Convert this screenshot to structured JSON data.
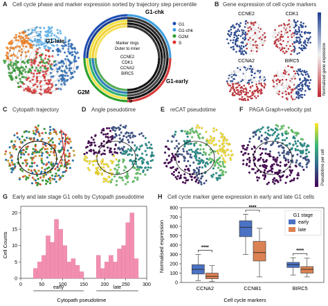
{
  "panel_a": {
    "letter": "A",
    "title": "Cell cycle phase and marker expression sorted by trajectory step percentile",
    "phase_labels": [
      "G1-chk",
      "G1-late",
      "G1-early",
      "G2M",
      "S"
    ],
    "legend": [
      {
        "label": "G1",
        "color": "#1f4fb5"
      },
      {
        "label": "G1-chk",
        "color": "#3fa0e0"
      },
      {
        "label": "G2M",
        "color": "#2ca02c"
      },
      {
        "label": "S",
        "color": "#e03030"
      }
    ],
    "ring_note": [
      "Marker rings",
      "Outer to inner"
    ],
    "ring_markers": [
      "CCNE2",
      "CDK1",
      "CCNA2",
      "BIRC5"
    ],
    "scatter_colors": {
      "G1": "#2f6db5",
      "G1-chk": "#5aaee8",
      "S": "#d83a3a",
      "G2M": "#3a9a3a",
      "G2M-orange": "#ef7f22"
    }
  },
  "panel_b": {
    "letter": "B",
    "title": "Gene expression of cell cycle markers",
    "genes": [
      "CCNE2",
      "CDK1",
      "CCNA2",
      "BIRC5"
    ],
    "colorbar_label": "Normalized gene expression",
    "colors": {
      "high": "#1a3d8f",
      "mid": "#f2f2f2",
      "low": "#c0232b"
    }
  },
  "panel_c": {
    "letter": "C",
    "title": "Cytopath trajectory"
  },
  "panel_d": {
    "letter": "D",
    "title": "Angle pseudotime"
  },
  "panel_e": {
    "letter": "E",
    "title": "reCAT pseudotime"
  },
  "panel_f": {
    "letter": "F",
    "title": "PAGA Graph+velocity pst",
    "colorbar_label": "Pseudotime per cell"
  },
  "panel_g": {
    "letter": "G",
    "title": "Early and late stage G1 cells by Cytopath pseudotime",
    "bar_color": "#f28fb0",
    "chart_data": {
      "type": "bar",
      "title": "Early and late stage G1 cells by Cytopath pseudotime",
      "xlabel": "Cytopath pseudotime",
      "ylabel": "Cell Counts",
      "xlim": [
        0,
        300
      ],
      "ylim": [
        0,
        22
      ],
      "xticks": [
        0,
        50,
        100,
        150,
        200,
        250,
        300
      ],
      "yticks": [
        0,
        5,
        10,
        15,
        20
      ],
      "group_labels": [
        "early",
        "late"
      ],
      "bins": [
        {
          "x0": 30,
          "x1": 40,
          "value": 3
        },
        {
          "x0": 40,
          "x1": 50,
          "value": 5
        },
        {
          "x0": 50,
          "x1": 60,
          "value": 7
        },
        {
          "x0": 60,
          "x1": 70,
          "value": 13
        },
        {
          "x0": 70,
          "x1": 80,
          "value": 11
        },
        {
          "x0": 80,
          "x1": 90,
          "value": 18
        },
        {
          "x0": 90,
          "x1": 100,
          "value": 15
        },
        {
          "x0": 100,
          "x1": 110,
          "value": 10
        },
        {
          "x0": 110,
          "x1": 120,
          "value": 5
        },
        {
          "x0": 120,
          "x1": 130,
          "value": 6
        },
        {
          "x0": 130,
          "x1": 140,
          "value": 4
        },
        {
          "x0": 140,
          "x1": 150,
          "value": 2
        },
        {
          "x0": 180,
          "x1": 190,
          "value": 7
        },
        {
          "x0": 190,
          "x1": 200,
          "value": 3
        },
        {
          "x0": 200,
          "x1": 210,
          "value": 5
        },
        {
          "x0": 210,
          "x1": 220,
          "value": 7
        },
        {
          "x0": 220,
          "x1": 230,
          "value": 5
        },
        {
          "x0": 230,
          "x1": 240,
          "value": 9
        },
        {
          "x0": 240,
          "x1": 250,
          "value": 10
        },
        {
          "x0": 250,
          "x1": 260,
          "value": 17
        },
        {
          "x0": 260,
          "x1": 270,
          "value": 20
        },
        {
          "x0": 270,
          "x1": 280,
          "value": 6
        }
      ]
    }
  },
  "panel_h": {
    "letter": "H",
    "title": "Cell cycle marker gene expression in early and late G1 cells",
    "chart_data": {
      "type": "box",
      "title": "Cell cycle marker gene expression in early and late G1 cells",
      "xlabel": "Cell cycle markers",
      "ylabel": "Normalised expression",
      "ylim": [
        0,
        800
      ],
      "yticks": [
        0,
        100,
        200,
        300,
        400,
        500,
        600,
        700,
        800
      ],
      "categories": [
        "CCNA2",
        "CCNB1",
        "BIRC5"
      ],
      "legend_title": "G1 stage",
      "significance": [
        "****",
        "****",
        "****"
      ],
      "series": [
        {
          "name": "early",
          "color": "#4b72c4",
          "boxes": [
            {
              "whisker_low": 20,
              "q1": 90,
              "median": 140,
              "q3": 190,
              "whisker_high": 300
            },
            {
              "whisker_low": 300,
              "q1": 490,
              "median": 590,
              "q3": 660,
              "whisker_high": 730
            },
            {
              "whisker_low": 80,
              "q1": 160,
              "median": 190,
              "q3": 215,
              "whisker_high": 265
            }
          ]
        },
        {
          "name": "late",
          "color": "#dc8252",
          "boxes": [
            {
              "whisker_low": 10,
              "q1": 40,
              "median": 65,
              "q3": 100,
              "whisker_high": 180
            },
            {
              "whisker_low": 60,
              "q1": 230,
              "median": 320,
              "q3": 440,
              "whisker_high": 580
            },
            {
              "whisker_low": 60,
              "q1": 100,
              "median": 140,
              "q3": 170,
              "whisker_high": 260
            }
          ]
        }
      ]
    }
  }
}
